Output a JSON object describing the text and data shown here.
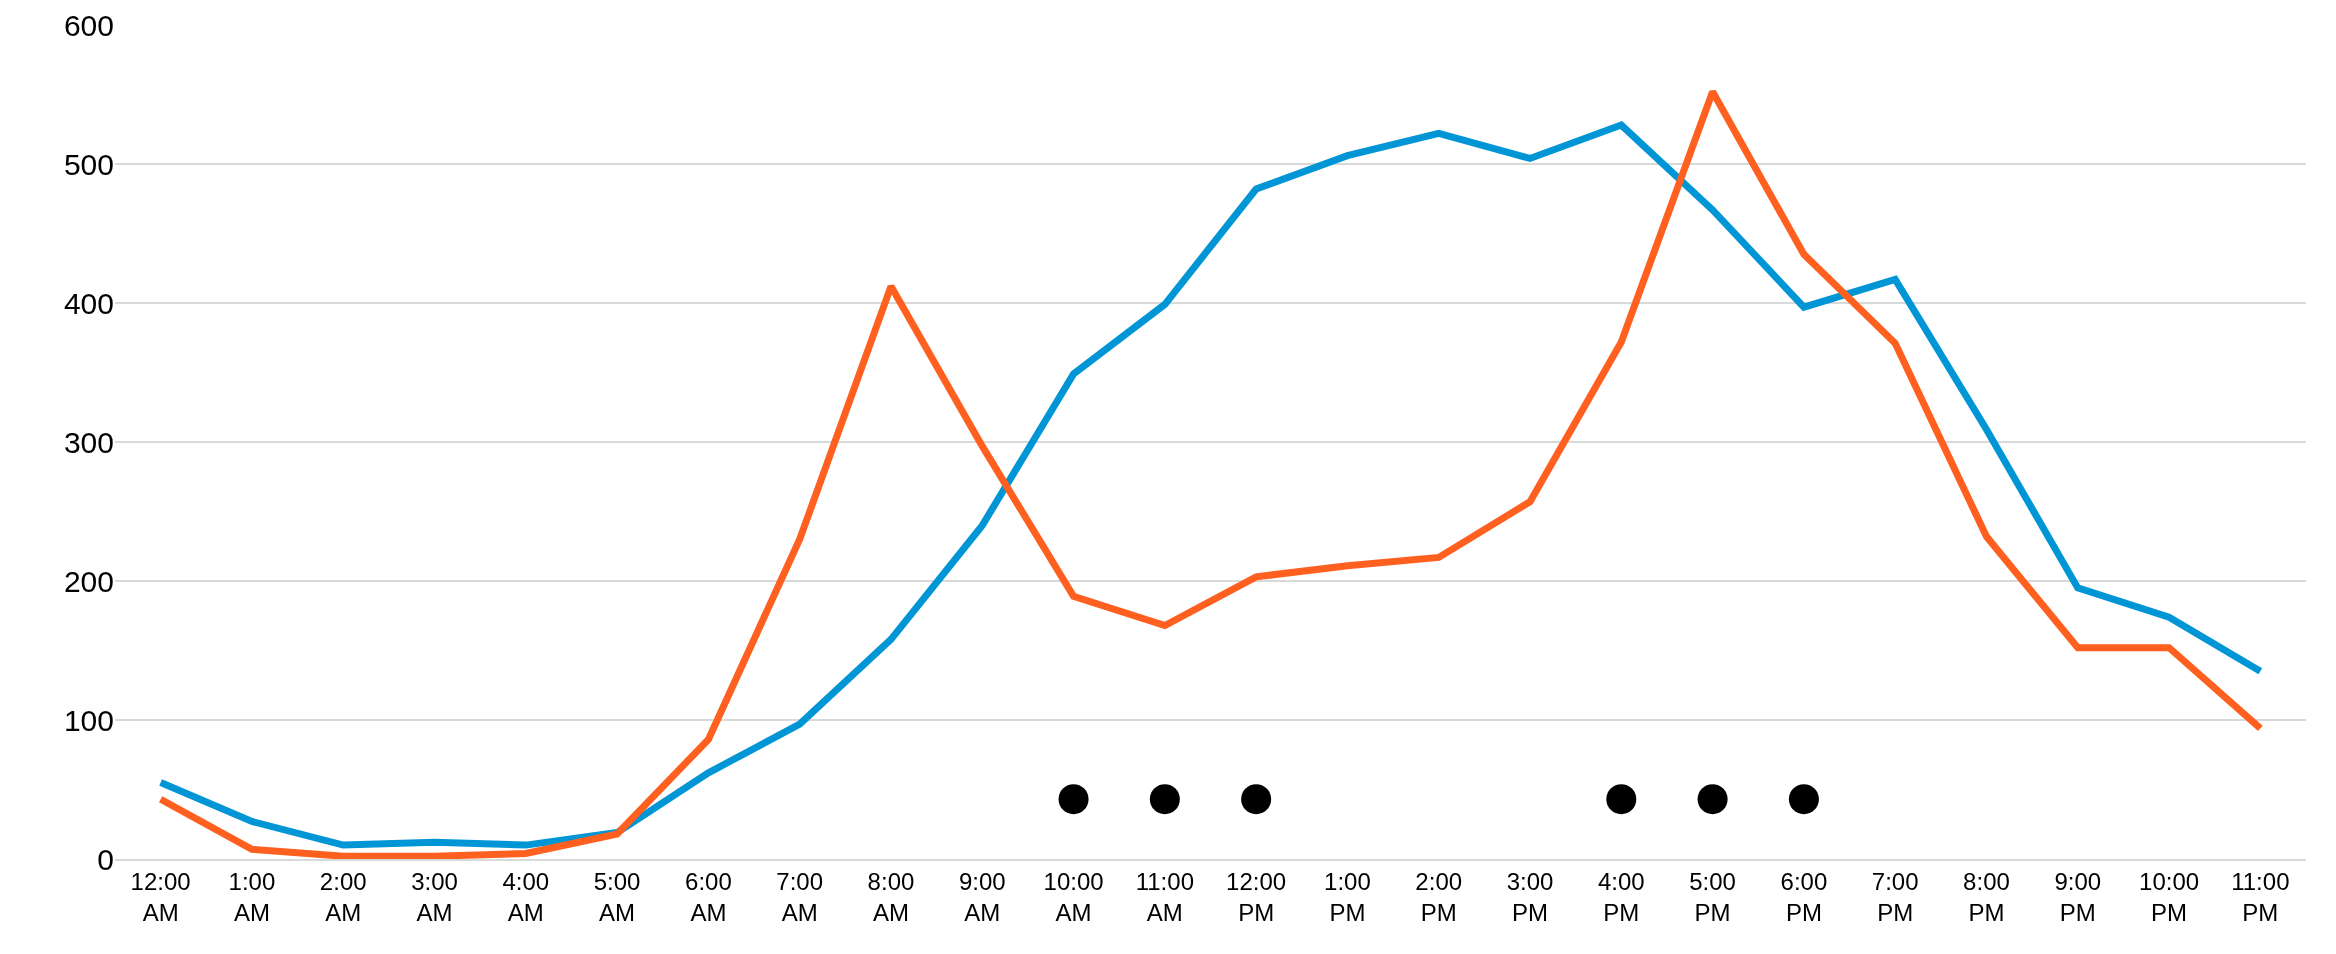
{
  "chart_data": {
    "type": "line",
    "categories": [
      "12:00 AM",
      "1:00 AM",
      "2:00 AM",
      "3:00 AM",
      "4:00 AM",
      "5:00 AM",
      "6:00 AM",
      "7:00 AM",
      "8:00 AM",
      "9:00 AM",
      "10:00 AM",
      "11:00 AM",
      "12:00 PM",
      "1:00 PM",
      "2:00 PM",
      "3:00 PM",
      "4:00 PM",
      "5:00 PM",
      "6:00 PM",
      "7:00 PM",
      "8:00 PM",
      "9:00 PM",
      "10:00 PM",
      "11:00 PM"
    ],
    "series": [
      {
        "color": "#0096d6",
        "values": [
          55,
          27,
          10,
          12,
          10,
          19,
          62,
          97,
          158,
          240,
          349,
          399,
          482,
          506,
          522,
          504,
          528,
          467,
          397,
          417,
          309,
          195,
          174,
          135
        ]
      },
      {
        "color": "#ff5f1f",
        "values": [
          43,
          7,
          2,
          2,
          4,
          18,
          86,
          230,
          412,
          297,
          189,
          168,
          203,
          211,
          217,
          257,
          372,
          552,
          435,
          371,
          232,
          152,
          152,
          94
        ]
      },
      {
        "type": "scatter",
        "marker": "circle",
        "color": "#000000",
        "values": [
          null,
          null,
          null,
          null,
          null,
          null,
          null,
          null,
          null,
          null,
          43,
          43,
          43,
          null,
          null,
          null,
          43,
          43,
          43,
          null,
          null,
          null,
          null,
          null
        ]
      }
    ],
    "ylim": [
      0,
      600
    ],
    "yticks": [
      0,
      100,
      200,
      300,
      400,
      500,
      600
    ],
    "grid": "y",
    "line_style": "solid",
    "marker": "none"
  }
}
